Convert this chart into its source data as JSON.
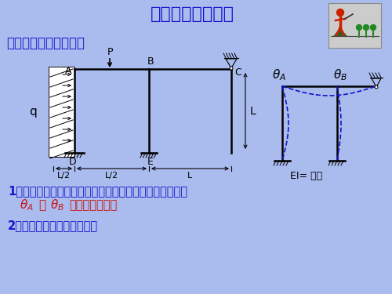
{
  "title": "位移法的典型方程",
  "title_color": "#1414CC",
  "bg_color": "#AABBEE",
  "section_title": "一、无侧移刚架的计算",
  "section_color": "#1414CC",
  "line1": "1、结构在荷载作用下的位移和变形是唯一确定的，特别的",
  "line2a": "θ",
  "line2b": "A",
  "line2c": "，  θ",
  "line2d": "B",
  "line2e": "是唯一确定的；",
  "line3": "2、结构内力是位移确定的。",
  "text_blue": "#1414CC",
  "text_red": "#CC1414",
  "EI_label": "EI= 常数",
  "bg_color2": "#AABBEE"
}
